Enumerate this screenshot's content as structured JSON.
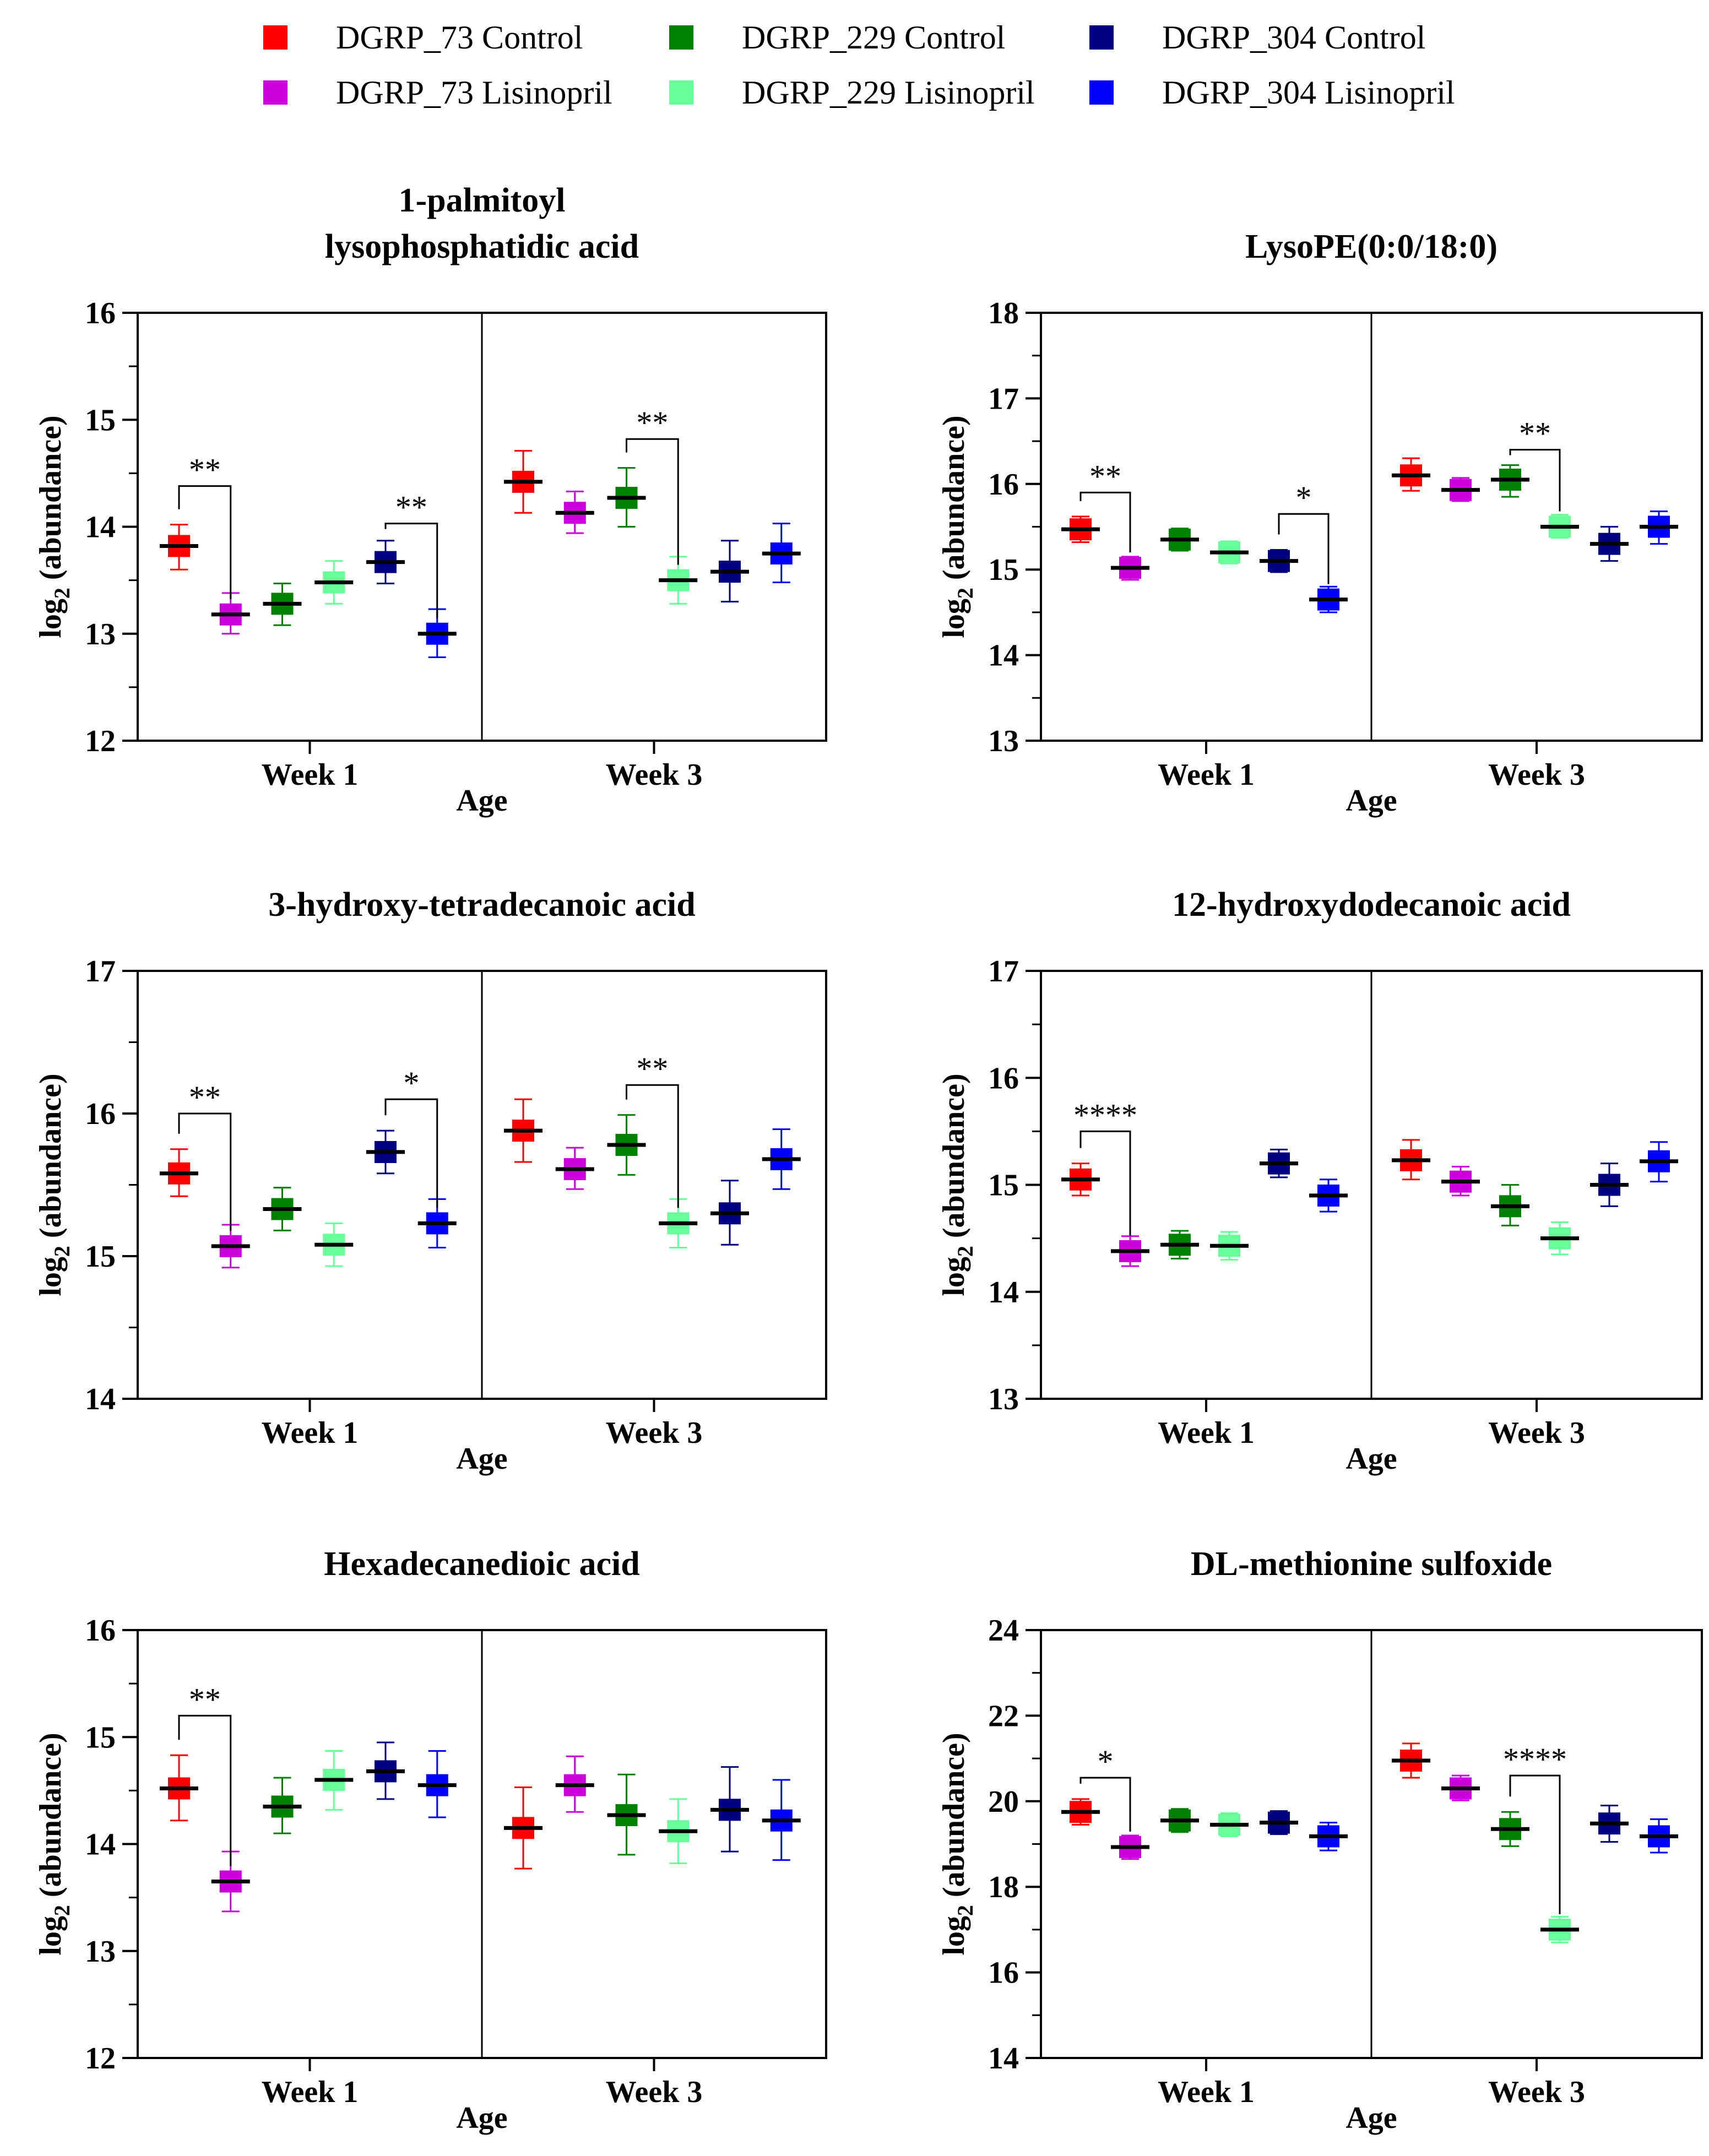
{
  "legend": [
    {
      "label": "DGRP_73 Control",
      "color": "#ff0000"
    },
    {
      "label": "DGRP_73 Lisinopril",
      "color": "#cc00dd"
    },
    {
      "label": "DGRP_229 Control",
      "color": "#008000"
    },
    {
      "label": "DGRP_229 Lisinopril",
      "color": "#66ff99"
    },
    {
      "label": "DGRP_304 Control",
      "color": "#000080"
    },
    {
      "label": "DGRP_304 Lisinopril",
      "color": "#0000ff"
    }
  ],
  "chart_data": [
    {
      "type": "scatter",
      "title_lines": [
        "1-palmitoyl",
        "lysophosphatidic acid"
      ],
      "ylabel": "log",
      "ylabel_sub": "2",
      "ylabel_rest": " (abundance)",
      "xlabel": "Age",
      "categories": [
        "Week 1",
        "Week 3"
      ],
      "ylim": [
        12,
        16
      ],
      "yticks": [
        12,
        13,
        14,
        15,
        16
      ],
      "ytick_labels": [
        "12",
        "13",
        "14",
        "15",
        "16"
      ],
      "groups": [
        {
          "category": "Week 1",
          "points": [
            {
              "series": 0,
              "mean": 13.82,
              "lo": 13.6,
              "hi": 14.02
            },
            {
              "series": 1,
              "mean": 13.18,
              "lo": 13.0,
              "hi": 13.38
            },
            {
              "series": 2,
              "mean": 13.28,
              "lo": 13.08,
              "hi": 13.47
            },
            {
              "series": 3,
              "mean": 13.48,
              "lo": 13.28,
              "hi": 13.68
            },
            {
              "series": 4,
              "mean": 13.67,
              "lo": 13.47,
              "hi": 13.87
            },
            {
              "series": 5,
              "mean": 13.0,
              "lo": 12.78,
              "hi": 13.23
            }
          ]
        },
        {
          "category": "Week 3",
          "points": [
            {
              "series": 0,
              "mean": 14.42,
              "lo": 14.13,
              "hi": 14.71
            },
            {
              "series": 1,
              "mean": 14.13,
              "lo": 13.94,
              "hi": 14.33
            },
            {
              "series": 2,
              "mean": 14.27,
              "lo": 14.0,
              "hi": 14.55
            },
            {
              "series": 3,
              "mean": 13.5,
              "lo": 13.28,
              "hi": 13.72
            },
            {
              "series": 4,
              "mean": 13.58,
              "lo": 13.3,
              "hi": 13.87
            },
            {
              "series": 5,
              "mean": 13.75,
              "lo": 13.48,
              "hi": 14.03
            }
          ]
        }
      ],
      "significance": [
        {
          "group": 0,
          "from": 0,
          "to": 1,
          "level": 14.38,
          "label": "**"
        },
        {
          "group": 0,
          "from": 4,
          "to": 5,
          "level": 14.03,
          "label": "**"
        },
        {
          "group": 1,
          "from": 2,
          "to": 3,
          "level": 14.82,
          "label": "**"
        }
      ]
    },
    {
      "type": "scatter",
      "title_lines": [
        "LysoPE(0:0/18:0)"
      ],
      "ylabel": "log",
      "ylabel_sub": "2",
      "ylabel_rest": " (abundance)",
      "xlabel": "Age",
      "categories": [
        "Week 1",
        "Week 3"
      ],
      "ylim": [
        13,
        18
      ],
      "yticks": [
        13,
        14,
        15,
        16,
        17,
        18
      ],
      "ytick_labels": [
        "13",
        "14",
        "15",
        "16",
        "17",
        "18"
      ],
      "groups": [
        {
          "category": "Week 1",
          "points": [
            {
              "series": 0,
              "mean": 15.47,
              "lo": 15.32,
              "hi": 15.62
            },
            {
              "series": 1,
              "mean": 15.02,
              "lo": 14.88,
              "hi": 15.15
            },
            {
              "series": 2,
              "mean": 15.35,
              "lo": 15.22,
              "hi": 15.48
            },
            {
              "series": 3,
              "mean": 15.2,
              "lo": 15.07,
              "hi": 15.33
            },
            {
              "series": 4,
              "mean": 15.1,
              "lo": 14.97,
              "hi": 15.23
            },
            {
              "series": 5,
              "mean": 14.65,
              "lo": 14.5,
              "hi": 14.8
            }
          ]
        },
        {
          "category": "Week 3",
          "points": [
            {
              "series": 0,
              "mean": 16.1,
              "lo": 15.92,
              "hi": 16.3
            },
            {
              "series": 1,
              "mean": 15.93,
              "lo": 15.8,
              "hi": 16.07
            },
            {
              "series": 2,
              "mean": 16.05,
              "lo": 15.85,
              "hi": 16.22
            },
            {
              "series": 3,
              "mean": 15.5,
              "lo": 15.37,
              "hi": 15.64
            },
            {
              "series": 4,
              "mean": 15.3,
              "lo": 15.1,
              "hi": 15.5
            },
            {
              "series": 5,
              "mean": 15.5,
              "lo": 15.3,
              "hi": 15.68
            }
          ]
        }
      ],
      "significance": [
        {
          "group": 0,
          "from": 0,
          "to": 1,
          "level": 15.9,
          "label": "**"
        },
        {
          "group": 0,
          "from": 4,
          "to": 5,
          "level": 15.65,
          "label": "*"
        },
        {
          "group": 1,
          "from": 2,
          "to": 3,
          "level": 16.4,
          "label": "**"
        }
      ]
    },
    {
      "type": "scatter",
      "title_lines": [
        "3-hydroxy-tetradecanoic acid"
      ],
      "ylabel": "log",
      "ylabel_sub": "2",
      "ylabel_rest": " (abundance)",
      "xlabel": "Age",
      "categories": [
        "Week 1",
        "Week 3"
      ],
      "ylim": [
        14,
        17
      ],
      "yticks": [
        14,
        15,
        16,
        17
      ],
      "ytick_labels": [
        "14",
        "15",
        "16",
        "17"
      ],
      "groups": [
        {
          "category": "Week 1",
          "points": [
            {
              "series": 0,
              "mean": 15.58,
              "lo": 15.42,
              "hi": 15.75
            },
            {
              "series": 1,
              "mean": 15.07,
              "lo": 14.92,
              "hi": 15.22
            },
            {
              "series": 2,
              "mean": 15.33,
              "lo": 15.18,
              "hi": 15.48
            },
            {
              "series": 3,
              "mean": 15.08,
              "lo": 14.93,
              "hi": 15.23
            },
            {
              "series": 4,
              "mean": 15.73,
              "lo": 15.58,
              "hi": 15.88
            },
            {
              "series": 5,
              "mean": 15.23,
              "lo": 15.06,
              "hi": 15.4
            }
          ]
        },
        {
          "category": "Week 3",
          "points": [
            {
              "series": 0,
              "mean": 15.88,
              "lo": 15.66,
              "hi": 16.1
            },
            {
              "series": 1,
              "mean": 15.61,
              "lo": 15.47,
              "hi": 15.76
            },
            {
              "series": 2,
              "mean": 15.78,
              "lo": 15.57,
              "hi": 15.99
            },
            {
              "series": 3,
              "mean": 15.23,
              "lo": 15.06,
              "hi": 15.4
            },
            {
              "series": 4,
              "mean": 15.3,
              "lo": 15.08,
              "hi": 15.53
            },
            {
              "series": 5,
              "mean": 15.68,
              "lo": 15.47,
              "hi": 15.89
            }
          ]
        }
      ],
      "significance": [
        {
          "group": 0,
          "from": 0,
          "to": 1,
          "level": 16.0,
          "label": "**"
        },
        {
          "group": 0,
          "from": 4,
          "to": 5,
          "level": 16.1,
          "label": "*"
        },
        {
          "group": 1,
          "from": 2,
          "to": 3,
          "level": 16.2,
          "label": "**"
        }
      ]
    },
    {
      "type": "scatter",
      "title_lines": [
        "12-hydroxydodecanoic acid"
      ],
      "ylabel": "log",
      "ylabel_sub": "2",
      "ylabel_rest": " (abundance)",
      "xlabel": "Age",
      "categories": [
        "Week 1",
        "Week 3"
      ],
      "ylim": [
        13,
        17
      ],
      "yticks": [
        13,
        14,
        15,
        16,
        17
      ],
      "ytick_labels": [
        "13",
        "14",
        "15",
        "16",
        "17"
      ],
      "groups": [
        {
          "category": "Week 1",
          "points": [
            {
              "series": 0,
              "mean": 15.05,
              "lo": 14.9,
              "hi": 15.2
            },
            {
              "series": 1,
              "mean": 14.38,
              "lo": 14.24,
              "hi": 14.52
            },
            {
              "series": 2,
              "mean": 14.44,
              "lo": 14.31,
              "hi": 14.57
            },
            {
              "series": 3,
              "mean": 14.43,
              "lo": 14.3,
              "hi": 14.56
            },
            {
              "series": 4,
              "mean": 15.2,
              "lo": 15.07,
              "hi": 15.33
            },
            {
              "series": 5,
              "mean": 14.9,
              "lo": 14.75,
              "hi": 15.05
            }
          ]
        },
        {
          "category": "Week 3",
          "points": [
            {
              "series": 0,
              "mean": 15.23,
              "lo": 15.05,
              "hi": 15.42
            },
            {
              "series": 1,
              "mean": 15.03,
              "lo": 14.9,
              "hi": 15.17
            },
            {
              "series": 2,
              "mean": 14.8,
              "lo": 14.62,
              "hi": 15.0
            },
            {
              "series": 3,
              "mean": 14.5,
              "lo": 14.35,
              "hi": 14.65
            },
            {
              "series": 4,
              "mean": 15.0,
              "lo": 14.8,
              "hi": 15.2
            },
            {
              "series": 5,
              "mean": 15.22,
              "lo": 15.03,
              "hi": 15.4
            }
          ]
        }
      ],
      "significance": [
        {
          "group": 0,
          "from": 0,
          "to": 1,
          "level": 15.5,
          "label": "****"
        }
      ]
    },
    {
      "type": "scatter",
      "title_lines": [
        "Hexadecanedioic acid"
      ],
      "ylabel": "log",
      "ylabel_sub": "2",
      "ylabel_rest": " (abundance)",
      "xlabel": "Age",
      "categories": [
        "Week 1",
        "Week 3"
      ],
      "ylim": [
        12,
        16
      ],
      "yticks": [
        12,
        13,
        14,
        15,
        16
      ],
      "ytick_labels": [
        "12",
        "13",
        "14",
        "15",
        "16"
      ],
      "groups": [
        {
          "category": "Week 1",
          "points": [
            {
              "series": 0,
              "mean": 14.52,
              "lo": 14.22,
              "hi": 14.83
            },
            {
              "series": 1,
              "mean": 13.65,
              "lo": 13.37,
              "hi": 13.93
            },
            {
              "series": 2,
              "mean": 14.35,
              "lo": 14.1,
              "hi": 14.62
            },
            {
              "series": 3,
              "mean": 14.6,
              "lo": 14.32,
              "hi": 14.87
            },
            {
              "series": 4,
              "mean": 14.68,
              "lo": 14.42,
              "hi": 14.95
            },
            {
              "series": 5,
              "mean": 14.55,
              "lo": 14.25,
              "hi": 14.87
            }
          ]
        },
        {
          "category": "Week 3",
          "points": [
            {
              "series": 0,
              "mean": 14.15,
              "lo": 13.77,
              "hi": 14.53
            },
            {
              "series": 1,
              "mean": 14.55,
              "lo": 14.3,
              "hi": 14.82
            },
            {
              "series": 2,
              "mean": 14.27,
              "lo": 13.9,
              "hi": 14.65
            },
            {
              "series": 3,
              "mean": 14.12,
              "lo": 13.82,
              "hi": 14.42
            },
            {
              "series": 4,
              "mean": 14.32,
              "lo": 13.93,
              "hi": 14.72
            },
            {
              "series": 5,
              "mean": 14.22,
              "lo": 13.85,
              "hi": 14.6
            }
          ]
        }
      ],
      "significance": [
        {
          "group": 0,
          "from": 0,
          "to": 1,
          "level": 15.2,
          "label": "**"
        }
      ]
    },
    {
      "type": "scatter",
      "title_lines": [
        "DL-methionine sulfoxide"
      ],
      "ylabel": "log",
      "ylabel_sub": "2",
      "ylabel_rest": " (abundance)",
      "xlabel": "Age",
      "categories": [
        "Week 1",
        "Week 3"
      ],
      "ylim": [
        14,
        24
      ],
      "yticks": [
        14,
        16,
        18,
        20,
        22,
        24
      ],
      "ytick_labels": [
        "14",
        "16",
        "18",
        "20",
        "22",
        "24"
      ],
      "groups": [
        {
          "category": "Week 1",
          "points": [
            {
              "series": 0,
              "mean": 19.75,
              "lo": 19.45,
              "hi": 20.05
            },
            {
              "series": 1,
              "mean": 18.93,
              "lo": 18.65,
              "hi": 19.2
            },
            {
              "series": 2,
              "mean": 19.55,
              "lo": 19.28,
              "hi": 19.82
            },
            {
              "series": 3,
              "mean": 19.45,
              "lo": 19.18,
              "hi": 19.72
            },
            {
              "series": 4,
              "mean": 19.5,
              "lo": 19.23,
              "hi": 19.77
            },
            {
              "series": 5,
              "mean": 19.18,
              "lo": 18.85,
              "hi": 19.5
            }
          ]
        },
        {
          "category": "Week 3",
          "points": [
            {
              "series": 0,
              "mean": 20.95,
              "lo": 20.55,
              "hi": 21.35
            },
            {
              "series": 1,
              "mean": 20.3,
              "lo": 20.02,
              "hi": 20.6
            },
            {
              "series": 2,
              "mean": 19.35,
              "lo": 18.95,
              "hi": 19.75
            },
            {
              "series": 3,
              "mean": 17.0,
              "lo": 16.7,
              "hi": 17.3
            },
            {
              "series": 4,
              "mean": 19.48,
              "lo": 19.05,
              "hi": 19.9
            },
            {
              "series": 5,
              "mean": 19.18,
              "lo": 18.8,
              "hi": 19.58
            }
          ]
        }
      ],
      "significance": [
        {
          "group": 0,
          "from": 0,
          "to": 1,
          "level": 20.55,
          "label": "*"
        },
        {
          "group": 1,
          "from": 2,
          "to": 3,
          "level": 20.6,
          "label": "****"
        }
      ]
    }
  ]
}
